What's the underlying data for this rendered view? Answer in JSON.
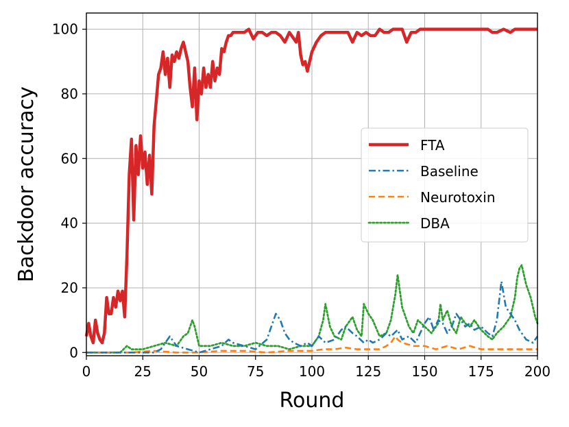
{
  "chart_data": {
    "type": "line",
    "xlabel": "Round",
    "ylabel": "Backdoor accuracy",
    "xlim": [
      0,
      200
    ],
    "ylim": [
      -1,
      105
    ],
    "xticks": [
      0,
      25,
      50,
      75,
      100,
      125,
      150,
      175,
      200
    ],
    "yticks": [
      0,
      20,
      40,
      60,
      80,
      100
    ],
    "grid": true,
    "legend_position": "center-right",
    "series": [
      {
        "name": "FTA",
        "color": "#d62728",
        "style": "solid",
        "x": [
          0,
          1,
          2,
          3,
          4,
          5,
          6,
          7,
          8,
          9,
          10,
          11,
          12,
          13,
          14,
          15,
          16,
          17,
          18,
          19,
          20,
          21,
          22,
          23,
          24,
          25,
          26,
          27,
          28,
          29,
          30,
          31,
          32,
          33,
          34,
          35,
          36,
          37,
          38,
          39,
          40,
          41,
          42,
          43,
          44,
          45,
          46,
          47,
          48,
          49,
          50,
          51,
          52,
          53,
          54,
          55,
          56,
          57,
          58,
          59,
          60,
          61,
          62,
          63,
          64,
          65,
          66,
          67,
          68,
          70,
          72,
          74,
          76,
          78,
          80,
          82,
          84,
          86,
          88,
          90,
          92,
          93,
          94,
          95,
          96,
          97,
          98,
          100,
          102,
          104,
          106,
          108,
          110,
          112,
          114,
          116,
          118,
          120,
          122,
          124,
          126,
          128,
          130,
          132,
          134,
          136,
          138,
          140,
          142,
          144,
          146,
          148,
          150,
          155,
          160,
          165,
          170,
          175,
          178,
          180,
          182,
          185,
          188,
          190,
          195,
          200
        ],
        "values": [
          5,
          9,
          5,
          3,
          10,
          6,
          4,
          3,
          6,
          17,
          12,
          12,
          17,
          14,
          19,
          16,
          19,
          11,
          30,
          55,
          66,
          41,
          64,
          55,
          67,
          57,
          62,
          52,
          61,
          49,
          70,
          78,
          86,
          88,
          93,
          86,
          91,
          82,
          92,
          90,
          93,
          91,
          94,
          96,
          93,
          90,
          82,
          76,
          88,
          72,
          84,
          80,
          88,
          82,
          86,
          82,
          90,
          84,
          88,
          86,
          94,
          93,
          96,
          98,
          98,
          99,
          99,
          99,
          99,
          99,
          100,
          97,
          99,
          99,
          98,
          99,
          99,
          98,
          96,
          99,
          97,
          96,
          99,
          92,
          89,
          90,
          87,
          93,
          96,
          98,
          99,
          99,
          99,
          99,
          99,
          99,
          96,
          99,
          98,
          99,
          98,
          98,
          100,
          99,
          99,
          100,
          100,
          100,
          96,
          99,
          99,
          100,
          100,
          100,
          100,
          100,
          100,
          100,
          100,
          99,
          99,
          100,
          99,
          100,
          100,
          100
        ]
      },
      {
        "name": "Baseline",
        "color": "#1f77b4",
        "style": "dashdot",
        "x": [
          0,
          5,
          10,
          15,
          20,
          25,
          30,
          33,
          35,
          37,
          40,
          45,
          50,
          55,
          60,
          63,
          65,
          70,
          75,
          80,
          82,
          84,
          86,
          88,
          90,
          92,
          95,
          98,
          100,
          103,
          106,
          110,
          113,
          115,
          118,
          120,
          123,
          125,
          127,
          130,
          133,
          135,
          138,
          140,
          143,
          146,
          148,
          150,
          152,
          154,
          156,
          158,
          160,
          162,
          164,
          166,
          168,
          170,
          172,
          175,
          178,
          180,
          182,
          184,
          186,
          188,
          190,
          192,
          195,
          198,
          200
        ],
        "values": [
          0,
          0,
          0,
          0,
          0,
          0,
          0,
          1,
          3,
          5,
          2,
          1,
          0,
          1,
          2,
          4,
          3,
          2,
          1,
          4,
          8,
          12,
          10,
          6,
          4,
          3,
          2,
          3,
          2,
          5,
          3,
          4,
          7,
          8,
          6,
          5,
          3,
          4,
          3,
          4,
          6,
          5,
          7,
          4,
          5,
          3,
          6,
          9,
          11,
          7,
          10,
          9,
          6,
          8,
          12,
          10,
          8,
          9,
          7,
          8,
          6,
          5,
          10,
          22,
          14,
          12,
          10,
          7,
          4,
          3,
          5
        ]
      },
      {
        "name": "Neurotoxin",
        "color": "#ff7f0e",
        "style": "dashed",
        "x": [
          0,
          10,
          20,
          30,
          40,
          50,
          60,
          70,
          80,
          90,
          100,
          105,
          110,
          115,
          120,
          125,
          130,
          133,
          135,
          137,
          138,
          140,
          145,
          150,
          155,
          160,
          165,
          170,
          175,
          180,
          185,
          190,
          195,
          200
        ],
        "values": [
          0,
          0,
          0,
          0.5,
          0,
          0,
          0.5,
          0.5,
          0,
          0.5,
          0.5,
          1,
          1,
          1.5,
          1,
          1,
          1,
          2,
          3,
          5,
          4,
          3,
          2,
          2,
          1,
          2,
          1,
          2,
          1,
          1,
          1,
          1,
          1,
          1
        ]
      },
      {
        "name": "DBA",
        "color": "#2ca02c",
        "style": "dotted",
        "x": [
          0,
          5,
          10,
          15,
          18,
          20,
          25,
          30,
          35,
          40,
          43,
          45,
          47,
          48,
          50,
          55,
          60,
          65,
          70,
          75,
          80,
          85,
          90,
          95,
          100,
          103,
          105,
          106,
          108,
          110,
          113,
          115,
          117,
          118,
          120,
          122,
          123,
          125,
          127,
          130,
          133,
          135,
          137,
          138,
          140,
          143,
          145,
          147,
          150,
          153,
          156,
          157,
          158,
          160,
          162,
          164,
          166,
          168,
          170,
          172,
          175,
          178,
          180,
          182,
          185,
          188,
          190,
          191,
          192,
          193,
          195,
          197,
          199,
          200
        ],
        "values": [
          0,
          0,
          0,
          0,
          2,
          1,
          1,
          2,
          3,
          2,
          5,
          6,
          10,
          8,
          2,
          2,
          3,
          2,
          2,
          3,
          2,
          2,
          1,
          2,
          2,
          5,
          10,
          15,
          8,
          5,
          4,
          8,
          10,
          11,
          7,
          5,
          15,
          12,
          10,
          5,
          6,
          10,
          18,
          24,
          14,
          8,
          6,
          10,
          8,
          6,
          9,
          15,
          10,
          13,
          8,
          6,
          11,
          9,
          8,
          10,
          7,
          5,
          4,
          6,
          8,
          11,
          17,
          23,
          26,
          27,
          21,
          17,
          11,
          9
        ]
      }
    ]
  }
}
